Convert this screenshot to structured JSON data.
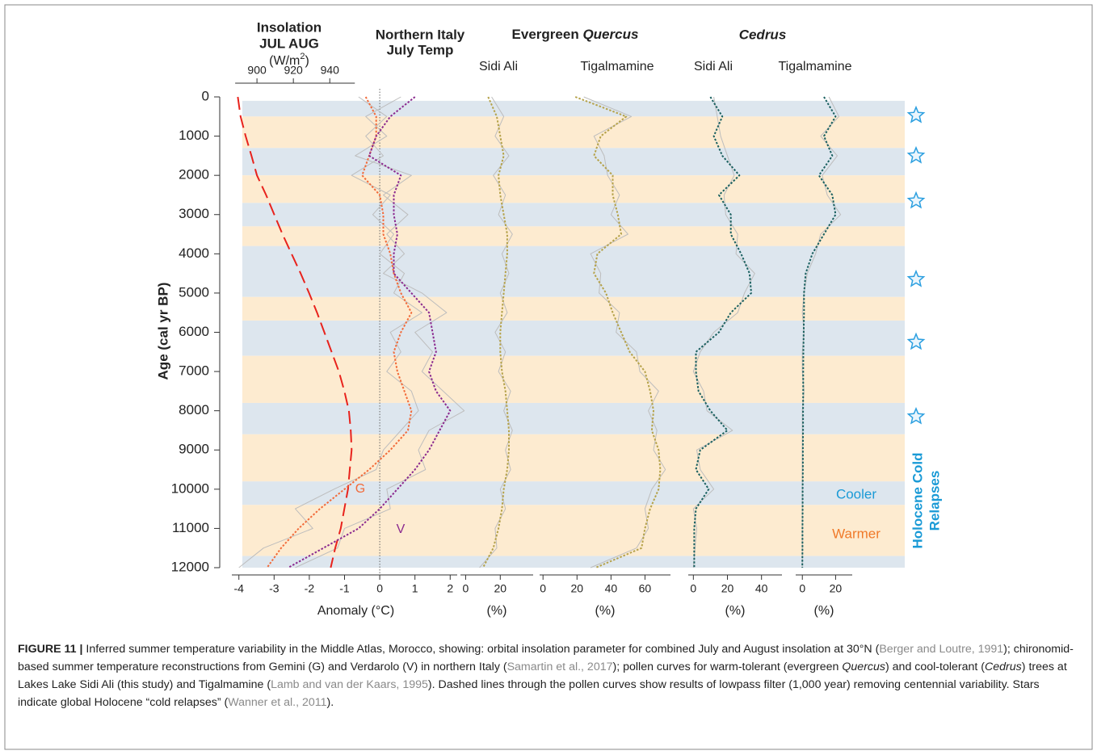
{
  "chart_data": {
    "type": "line",
    "ylabel": "Age (cal yr BP)",
    "ylim": [
      0,
      12000
    ],
    "yticks": [
      0,
      1000,
      2000,
      3000,
      4000,
      5000,
      6000,
      7000,
      8000,
      9000,
      10000,
      11000,
      12000
    ],
    "ages": [
      0,
      500,
      1000,
      1500,
      2000,
      2500,
      3000,
      3500,
      4000,
      4500,
      5000,
      5500,
      6000,
      6500,
      7000,
      7500,
      8000,
      8500,
      9000,
      9500,
      10000,
      10500,
      11000,
      11500,
      12000
    ],
    "cooler_color": "#dde6ee",
    "warmer_color": "#fdebd0",
    "cooler_bands": [
      [
        100,
        500
      ],
      [
        1300,
        2000
      ],
      [
        2700,
        3300
      ],
      [
        3800,
        5100
      ],
      [
        5700,
        6600
      ],
      [
        7800,
        8600
      ],
      [
        9800,
        10400
      ],
      [
        11700,
        12000
      ]
    ],
    "warmer_bands": [
      [
        500,
        1300
      ],
      [
        2000,
        2700
      ],
      [
        3300,
        3800
      ],
      [
        5100,
        5700
      ],
      [
        6600,
        7800
      ],
      [
        8600,
        9800
      ],
      [
        10400,
        11700
      ]
    ],
    "stars": [
      470,
      1500,
      2650,
      4650,
      6250,
      8150
    ],
    "star_color": "#2b9fe0",
    "legend": {
      "cooler": "Cooler",
      "warmer": "Warmer",
      "title": [
        "Holocene Cold",
        "Relapses"
      ]
    },
    "groups": [
      {
        "title": "Evergreen",
        "title_italic": "Quercus"
      },
      {
        "title_italic": "Cedrus"
      }
    ],
    "panels": [
      {
        "x2title": [
          "Insolation",
          "JUL AUG"
        ],
        "x2label": [
          "(W/m",
          "2",
          ")"
        ],
        "title": [
          "Northern Italy",
          "July Temp"
        ],
        "xlabel": "Anomaly (°C)",
        "xlim": [
          -4.2,
          2.2
        ],
        "xticks": [
          -4,
          -3,
          -2,
          -1,
          0,
          1,
          2
        ],
        "x2lim": [
          886.2,
          1010
        ],
        "x2ticks": [
          900,
          920,
          940
        ],
        "zero_line": true,
        "series": [
          {
            "color": "#bdbdbd",
            "values": [
              -0.6,
              0.2,
              -0.4,
              0.1,
              -0.8,
              0.3,
              -0.2,
              0.4,
              0.0,
              0.7,
              0.4,
              1.2,
              0.3,
              0.6,
              0.2,
              0.9,
              1.1,
              0.6,
              0.1,
              -0.1,
              -1.3,
              -2.4,
              -1.9,
              -3.3,
              -4.0
            ]
          },
          {
            "color": "#bdbdbd",
            "values": [
              0.6,
              -0.4,
              0.2,
              -0.7,
              0.9,
              0.1,
              0.8,
              0.2,
              0.7,
              0.1,
              1.2,
              1.9,
              1.0,
              1.5,
              1.2,
              1.8,
              2.4,
              1.4,
              1.1,
              1.3,
              0.2,
              0.3,
              -1.0,
              -1.2,
              -2.4
            ]
          },
          {
            "color": "#e8221c",
            "dash": "dashed",
            "axis": "x2",
            "values": [
              889.5,
              891,
              893.8,
              897,
              900,
              905,
              909.5,
              914,
              919,
              924,
              928.6,
              933,
              937,
              941,
              945,
              948,
              950.5,
              951.5,
              952,
              951,
              950,
              948,
              946,
              943,
              940.5
            ]
          },
          {
            "color": "#f26b3a",
            "dash": "dotted",
            "label": "G",
            "values": [
              -0.4,
              -0.1,
              -0.1,
              -0.3,
              -0.5,
              0.0,
              0.1,
              0.1,
              0.3,
              0.4,
              0.6,
              0.9,
              0.6,
              0.4,
              0.5,
              0.7,
              0.9,
              0.8,
              0.3,
              -0.3,
              -1.0,
              -1.7,
              -2.3,
              -2.8,
              -3.2
            ]
          },
          {
            "color": "#8b2a8f",
            "dash": "dotted",
            "label": "V",
            "values": [
              1.0,
              0.3,
              -0.1,
              -0.3,
              0.6,
              0.4,
              0.4,
              0.5,
              0.4,
              0.4,
              0.9,
              1.4,
              1.5,
              1.6,
              1.4,
              1.6,
              2.0,
              1.7,
              1.4,
              1.0,
              0.5,
              0.0,
              -0.6,
              -1.6,
              -2.6
            ]
          }
        ]
      },
      {
        "subtitle": "Sidi Ali",
        "xlabel": "(%)",
        "xlim": [
          -3,
          39
        ],
        "xticks": [
          0,
          20
        ],
        "series": [
          {
            "color": "#bdbdbd",
            "values": [
              15,
              22,
              17,
              25,
              16,
              23,
              19,
              27,
              21,
              25,
              20,
              24,
              17,
              23,
              19,
              26,
              22,
              27,
              23,
              26,
              20,
              23,
              17,
              18,
              8
            ]
          },
          {
            "color": "#b5a24a",
            "dash": "dotted",
            "values": [
              13,
              18,
              20,
              22,
              19,
              20,
              22,
              24,
              24,
              23,
              22,
              21,
              20,
              20,
              21,
              23,
              24,
              25,
              25,
              24,
              22,
              21,
              19,
              16,
              10
            ]
          }
        ]
      },
      {
        "subtitle": "Tigalmamine",
        "xlabel": "(%)",
        "xlim": [
          -2,
          75
        ],
        "xticks": [
          0,
          20,
          40,
          60
        ],
        "series": [
          {
            "color": "#bdbdbd",
            "values": [
              24,
              52,
              30,
              36,
              38,
              45,
              40,
              50,
              28,
              34,
              33,
              45,
              43,
              55,
              57,
              68,
              62,
              67,
              65,
              72,
              64,
              60,
              62,
              55,
              28
            ]
          },
          {
            "color": "#b5a24a",
            "dash": "dotted",
            "values": [
              19,
              49,
              34,
              30,
              41,
              41,
              44,
              46,
              32,
              30,
              37,
              41,
              46,
              51,
              60,
              63,
              65,
              64,
              68,
              69,
              68,
              63,
              60,
              58,
              31
            ]
          }
        ]
      },
      {
        "subtitle": "Sidi Ali",
        "xlabel": "(%)",
        "xlim": [
          -3,
          52
        ],
        "xticks": [
          0,
          20,
          40
        ],
        "series": [
          {
            "color": "#bdbdbd",
            "values": [
              12,
              14,
              16,
              20,
              24,
              18,
              19,
              26,
              25,
              36,
              30,
              26,
              12,
              4,
              0,
              6,
              8,
              23,
              2,
              4,
              12,
              0,
              2,
              1,
              0
            ]
          },
          {
            "color": "#1a6060",
            "dash": "dotted",
            "values": [
              10,
              17,
              12,
              17,
              27,
              15,
              22,
              22,
              28,
              33,
              34,
              22,
              15,
              1.5,
              1.5,
              3,
              10,
              20,
              4,
              1.5,
              9,
              1.5,
              0.5,
              0.5,
              0.5
            ]
          }
        ]
      },
      {
        "subtitle": "Tigalmamine",
        "xlabel": "(%)",
        "xlim": [
          -4,
          30
        ],
        "xticks": [
          0,
          20
        ],
        "series": [
          {
            "color": "#bdbdbd",
            "values": [
              16,
              22,
              11,
              21,
              12,
              15,
              23,
              11,
              8,
              3,
              1,
              0,
              1,
              0,
              0,
              1,
              0,
              0,
              0,
              0,
              0,
              0,
              0,
              0,
              0
            ]
          },
          {
            "color": "#1a6060",
            "dash": "dotted",
            "values": [
              13,
              20,
              13,
              18,
              10,
              18,
              20,
              13,
              6,
              2,
              1,
              1,
              0.8,
              0.6,
              0.5,
              0.5,
              0.4,
              0.4,
              0.3,
              0.3,
              0.2,
              0.2,
              0.1,
              0.1,
              0
            ]
          }
        ]
      }
    ]
  },
  "caption": {
    "label": "FIGURE 11 |",
    "segments": [
      {
        "kind": "plain",
        "text": " Inferred summer temperature variability in the Middle Atlas, Morocco, showing: orbital insolation parameter for combined July and August insolation at 30°N ("
      },
      {
        "kind": "cite",
        "text": "Berger and Loutre, 1991"
      },
      {
        "kind": "plain",
        "text": "); chironomid-based summer temperature reconstructions from Gemini (G) and Verdarolo (V) in northern Italy ("
      },
      {
        "kind": "cite",
        "text": "Samartin et al., 2017"
      },
      {
        "kind": "plain",
        "text": "); pollen curves for warm-tolerant (evergreen "
      },
      {
        "kind": "italic",
        "text": "Quercus"
      },
      {
        "kind": "plain",
        "text": ") and cool-tolerant ("
      },
      {
        "kind": "italic",
        "text": "Cedrus"
      },
      {
        "kind": "plain",
        "text": ") trees at Lakes Lake Sidi Ali (this study) and Tigalmamine ("
      },
      {
        "kind": "cite",
        "text": "Lamb and van der Kaars, 1995"
      },
      {
        "kind": "plain",
        "text": "). Dashed lines through the pollen curves show results of lowpass filter (1,000 year) removing centennial variability. Stars indicate global Holocene “cold relapses” ("
      },
      {
        "kind": "cite",
        "text": "Wanner et al., 2011"
      },
      {
        "kind": "plain",
        "text": ")."
      }
    ]
  }
}
